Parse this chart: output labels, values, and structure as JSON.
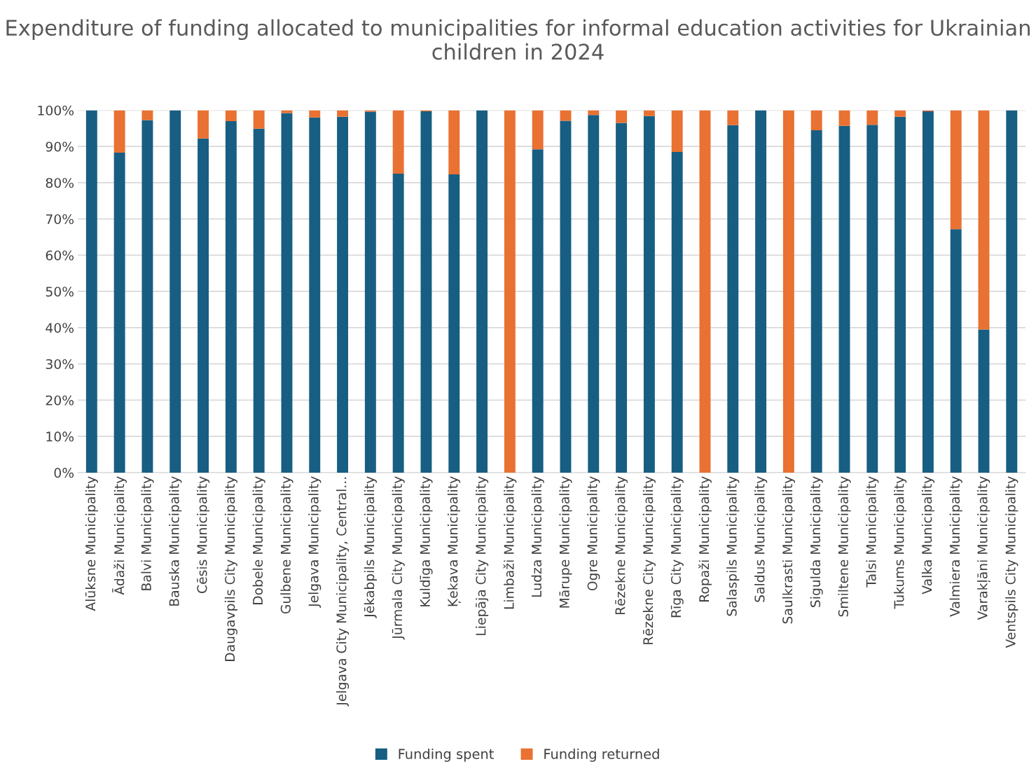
{
  "chart_data": {
    "type": "bar",
    "title": "Expenditure of funding allocated to municipalities for informal education activities for Ukrainian children in 2024",
    "categories": [
      "Alūksne Municipality",
      "Ādaži Municipality",
      "Balvi Municipality",
      "Bauska Municipality",
      "Cēsis Municipality",
      "Daugavpils City Municipality",
      "Dobele Municipality",
      "Gulbene Municipality",
      "Jelgava Municipality",
      "Jelgava City Municipality, Central...",
      "Jēkabpils Municipality",
      "Jūrmala City Municipality",
      "Kuldīga Municipality",
      "Ķekava Municipality",
      "Liepāja City Municipality",
      "Limbaži Municipality",
      "Ludza Municipality",
      "Mārupe Municipality",
      "Ogre Municipality",
      "Rēzekne Municipality",
      "Rēzekne City Municipality",
      "Rīga City Municipality",
      "Ropaži Municipality",
      "Salaspils Municipality",
      "Saldus Municipality",
      "Saulkrasti Municipality",
      "Sigulda Municipality",
      "Smiltene Municipality",
      "Talsi Municipality",
      "Tukums Municipality",
      "Valka Municipality",
      "Valmiera Municipality",
      "Varakļāni Municipality",
      "Ventspils City Municipality"
    ],
    "series": [
      {
        "name": "Funding spent",
        "color": "#175e82",
        "values": [
          100,
          88.3,
          97.3,
          100,
          92.2,
          97.0,
          94.9,
          99.2,
          98.0,
          98.2,
          99.6,
          82.5,
          99.7,
          82.3,
          100,
          0,
          89.2,
          97.1,
          98.7,
          96.5,
          98.4,
          88.5,
          0,
          95.9,
          100,
          0,
          94.5,
          95.7,
          96.0,
          98.2,
          99.7,
          67.2,
          39.5,
          100
        ]
      },
      {
        "name": "Funding returned",
        "color": "#e97132",
        "values": [
          0,
          11.7,
          2.7,
          0,
          7.8,
          3.0,
          5.1,
          0.8,
          2.0,
          1.8,
          0.4,
          17.5,
          0.3,
          17.7,
          0,
          100,
          10.8,
          2.9,
          1.3,
          3.5,
          1.6,
          11.5,
          100,
          4.1,
          0,
          100,
          5.5,
          4.3,
          4.0,
          1.8,
          0.3,
          32.8,
          60.5,
          0
        ]
      }
    ],
    "stacked": true,
    "ylim": [
      0,
      100
    ],
    "yticks": [
      {
        "value": 0,
        "label": "0%"
      },
      {
        "value": 10,
        "label": "10%"
      },
      {
        "value": 20,
        "label": "20%"
      },
      {
        "value": 30,
        "label": "30%"
      },
      {
        "value": 40,
        "label": "40%"
      },
      {
        "value": 50,
        "label": "50%"
      },
      {
        "value": 60,
        "label": "60%"
      },
      {
        "value": 70,
        "label": "70%"
      },
      {
        "value": 80,
        "label": "80%"
      },
      {
        "value": 90,
        "label": "90%"
      },
      {
        "value": 100,
        "label": "100%"
      }
    ],
    "grid": "y",
    "legend": "bottom"
  }
}
